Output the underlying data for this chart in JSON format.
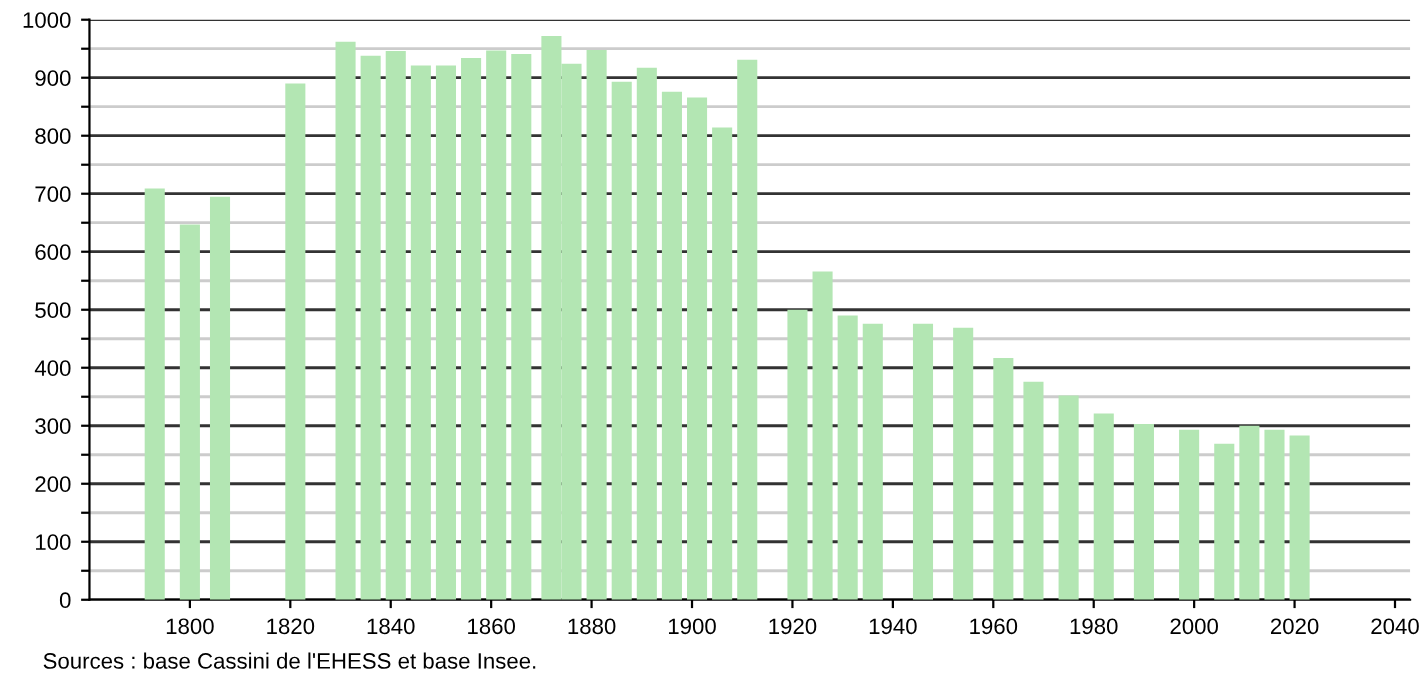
{
  "chart_data": {
    "type": "bar",
    "x": [
      1793,
      1800,
      1806,
      1821,
      1831,
      1836,
      1841,
      1846,
      1851,
      1856,
      1861,
      1866,
      1872,
      1876,
      1881,
      1886,
      1891,
      1896,
      1901,
      1906,
      1911,
      1921,
      1926,
      1931,
      1936,
      1946,
      1954,
      1962,
      1968,
      1975,
      1982,
      1990,
      1999,
      2006,
      2011,
      2016,
      2021
    ],
    "values": [
      709,
      647,
      695,
      890,
      962,
      938,
      946,
      921,
      921,
      934,
      947,
      941,
      972,
      924,
      948,
      893,
      917,
      876,
      866,
      814,
      931,
      500,
      566,
      490,
      476,
      476,
      469,
      417,
      376,
      352,
      321,
      303,
      293,
      269,
      300,
      293,
      283
    ],
    "color": "#b3e6b3",
    "xlim": [
      1780,
      2043
    ],
    "xticks": [
      1800,
      1820,
      1840,
      1860,
      1880,
      1900,
      1920,
      1940,
      1960,
      1980,
      2000,
      2020,
      2040
    ],
    "ylim": [
      0,
      1000
    ],
    "yticks": [
      0,
      {
        "value": 50,
        "label": null
      },
      100,
      {
        "value": 150,
        "label": null
      },
      200,
      {
        "value": 250,
        "label": null
      },
      300,
      {
        "value": 350,
        "label": null
      },
      400,
      {
        "value": 450,
        "label": null
      },
      500,
      {
        "value": 550,
        "label": null
      },
      600,
      {
        "value": 650,
        "label": null
      },
      700,
      {
        "value": 750,
        "label": null
      },
      800,
      {
        "value": 850,
        "label": null
      },
      900,
      {
        "value": 950,
        "label": null
      },
      1000
    ],
    "grid": "y",
    "annotations": [
      "Sources : base Cassini de l'EHESS et base Insee."
    ]
  }
}
